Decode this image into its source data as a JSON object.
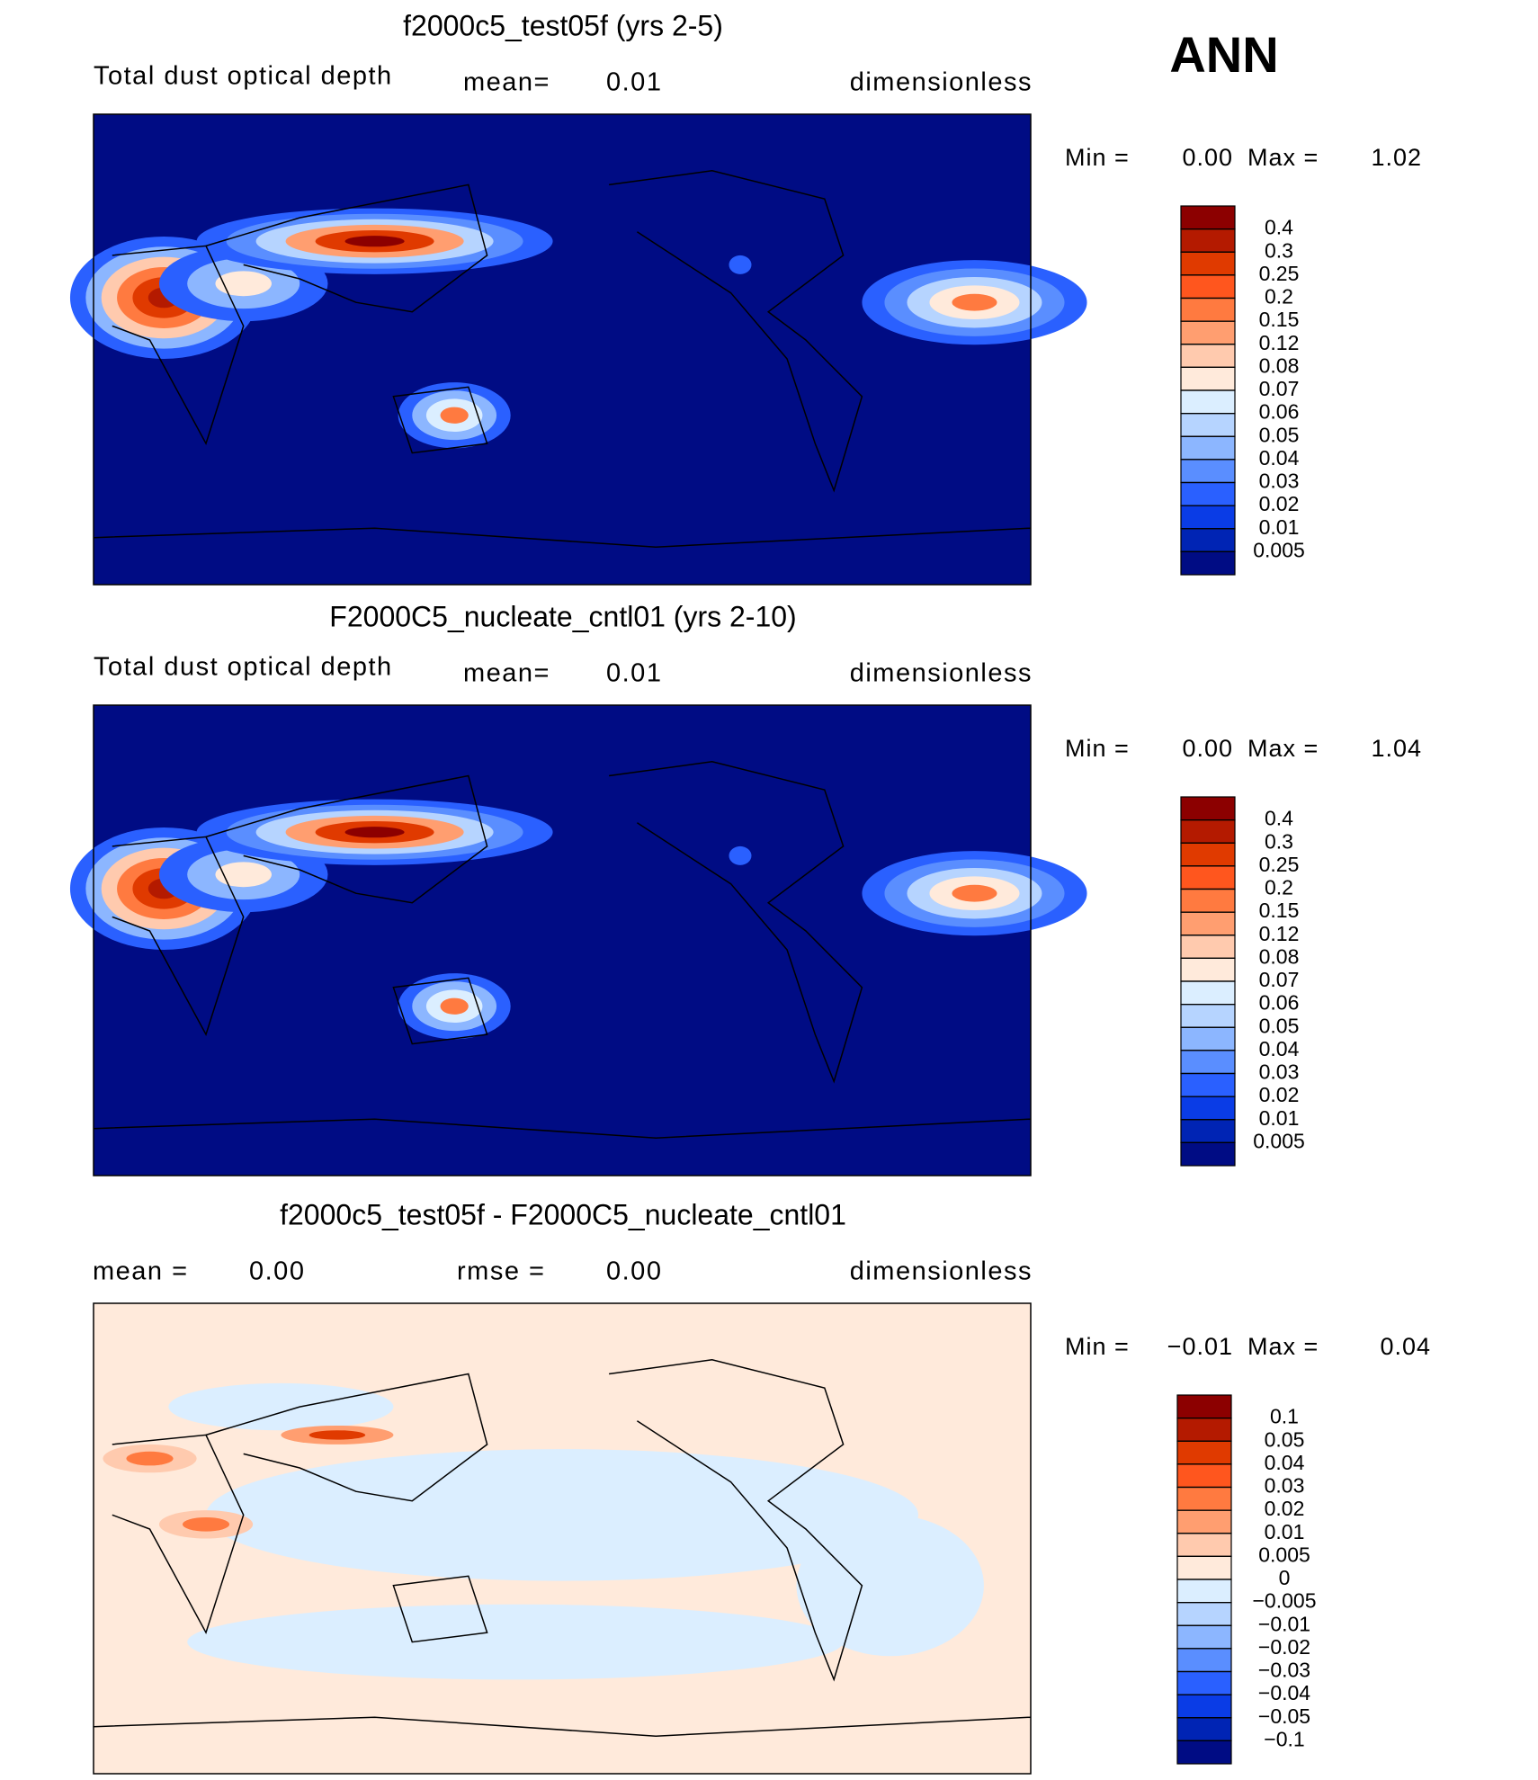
{
  "title": "ANN",
  "panels": [
    {
      "title": "f2000c5_test05f (yrs 2-5)",
      "variable": "Total dust optical depth",
      "mean_label": "mean=",
      "mean": 0.01,
      "units": "dimensionless",
      "min_label": "Min =",
      "min": {
        "value": 0,
        "label": "0.00"
      },
      "max_label": "Max =",
      "max": 1.02,
      "levels": [
        0.4,
        0.3,
        0.25,
        0.2,
        0.15,
        0.12,
        0.08,
        0.07,
        0.06,
        0.05,
        0.04,
        0.03,
        0.02,
        0.01,
        0.005
      ],
      "colors": [
        "#8c0000",
        "#b41a00",
        "#e03a00",
        "#ff561e",
        "#ff7a40",
        "#ff9e70",
        "#ffcaae",
        "#ffeadb",
        "#dbeeff",
        "#b6d4ff",
        "#8cb6ff",
        "#5a8eff",
        "#2a60ff",
        "#0a3ce6",
        "#0024b4",
        "#000c84"
      ]
    },
    {
      "title": "F2000C5_nucleate_cntl01 (yrs 2-10)",
      "variable": "Total dust optical depth",
      "mean_label": "mean=",
      "mean": 0.01,
      "units": "dimensionless",
      "min_label": "Min =",
      "min": {
        "value": 0,
        "label": "0.00"
      },
      "max_label": "Max =",
      "max": 1.04,
      "levels": [
        0.4,
        0.3,
        0.25,
        0.2,
        0.15,
        0.12,
        0.08,
        0.07,
        0.06,
        0.05,
        0.04,
        0.03,
        0.02,
        0.01,
        0.005
      ],
      "colors": [
        "#8c0000",
        "#b41a00",
        "#e03a00",
        "#ff561e",
        "#ff7a40",
        "#ff9e70",
        "#ffcaae",
        "#ffeadb",
        "#dbeeff",
        "#b6d4ff",
        "#8cb6ff",
        "#5a8eff",
        "#2a60ff",
        "#0a3ce6",
        "#0024b4",
        "#000c84"
      ]
    },
    {
      "title": "f2000c5_test05f - F2000C5_nucleate_cntl01",
      "mean_label": "mean =",
      "mean": {
        "value": 0,
        "label": "0.00"
      },
      "rmse_label": "rmse =",
      "rmse": {
        "value": 0,
        "label": "0.00"
      },
      "units": "dimensionless",
      "min_label": "Min =",
      "min": {
        "value": -0.01,
        "label": "−0.01"
      },
      "max_label": "Max =",
      "max": 0.04,
      "levels": [
        0.1,
        0.05,
        0.04,
        0.03,
        0.02,
        0.01,
        0.005,
        0,
        {
          "value": -0.005,
          "label": "−0.005"
        },
        {
          "value": -0.01,
          "label": "−0.01"
        },
        {
          "value": -0.02,
          "label": "−0.02"
        },
        {
          "value": -0.03,
          "label": "−0.03"
        },
        {
          "value": -0.04,
          "label": "−0.04"
        },
        {
          "value": -0.05,
          "label": "−0.05"
        },
        {
          "value": -0.1,
          "label": "−0.1"
        }
      ],
      "colors": [
        "#8c0000",
        "#b41a00",
        "#e03a00",
        "#ff561e",
        "#ff7a40",
        "#ff9e70",
        "#ffcaae",
        "#ffeadb",
        "#dbeeff",
        "#b6d4ff",
        "#8cb6ff",
        "#5a8eff",
        "#2a60ff",
        "#0a3ce6",
        "#0024b4",
        "#000c84"
      ]
    }
  ]
}
